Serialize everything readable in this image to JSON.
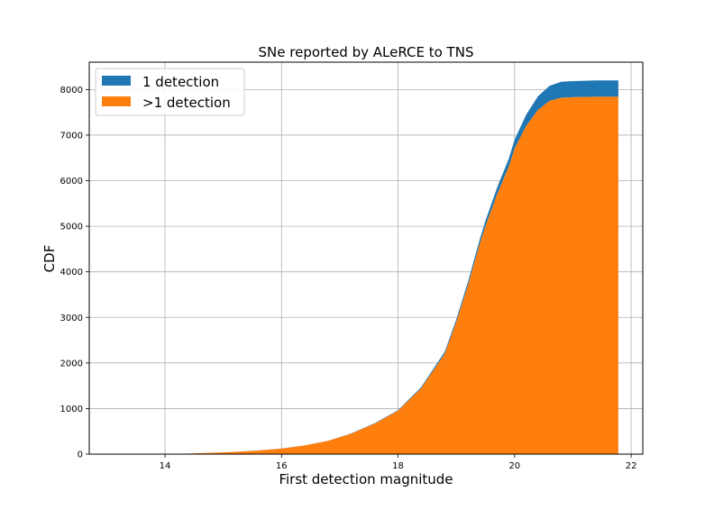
{
  "chart_data": {
    "type": "area",
    "title": "SNe reported by ALeRCE to TNS",
    "xlabel": "First detection magnitude",
    "ylabel": "CDF",
    "xlim": [
      12.7,
      22.2
    ],
    "ylim": [
      0,
      8600
    ],
    "xticks": [
      14,
      16,
      18,
      20,
      22
    ],
    "yticks": [
      0,
      1000,
      2000,
      3000,
      4000,
      5000,
      6000,
      7000,
      8000
    ],
    "grid": true,
    "legend_position": "top-left",
    "stacked": true,
    "series": [
      {
        "name": "1 detection",
        "color": "#1f77b4",
        "x": [
          14.35,
          14.8,
          15.2,
          15.6,
          16.0,
          16.4,
          16.8,
          17.2,
          17.6,
          18.0,
          18.4,
          18.8,
          19.0,
          19.2,
          19.4,
          19.5,
          19.7,
          19.9,
          20.0,
          20.2,
          20.4,
          20.6,
          20.8,
          21.0,
          21.4,
          21.78
        ],
        "values": [
          0,
          0,
          0,
          1,
          2,
          3,
          4,
          6,
          10,
          15,
          25,
          45,
          60,
          80,
          100,
          120,
          150,
          180,
          200,
          250,
          300,
          330,
          350,
          355,
          360,
          360
        ]
      },
      {
        "name": ">1 detection",
        "color": "#ff7f0e",
        "x": [
          14.35,
          14.8,
          15.2,
          15.6,
          16.0,
          16.4,
          16.8,
          17.2,
          17.6,
          18.0,
          18.4,
          18.8,
          19.0,
          19.2,
          19.4,
          19.5,
          19.7,
          19.9,
          20.0,
          20.2,
          20.4,
          20.6,
          20.8,
          21.0,
          21.4,
          21.78
        ],
        "values": [
          10,
          30,
          50,
          80,
          120,
          190,
          290,
          450,
          670,
          950,
          1450,
          2200,
          2900,
          3700,
          4600,
          5000,
          5700,
          6300,
          6700,
          7200,
          7550,
          7750,
          7820,
          7830,
          7840,
          7840
        ]
      }
    ]
  }
}
